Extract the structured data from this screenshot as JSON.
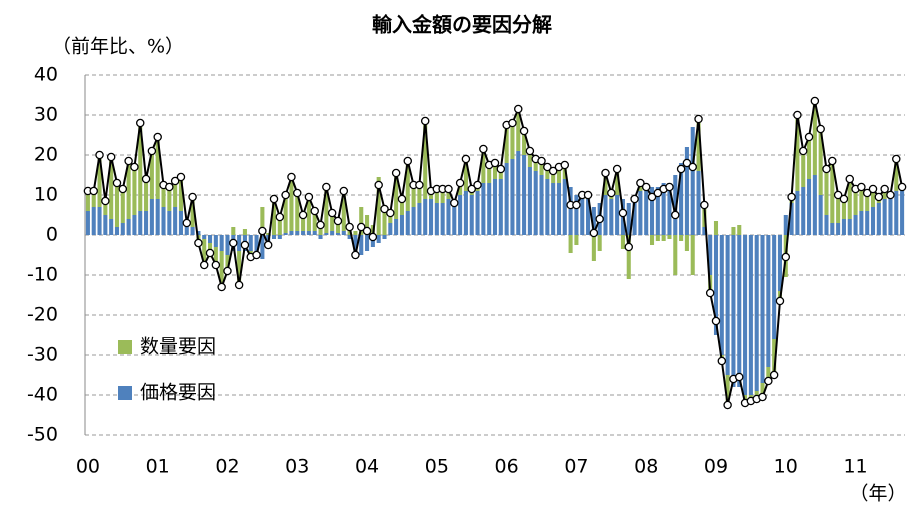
{
  "chart_data": {
    "type": "stacked-bar-line",
    "title": "輸入金額の要因分解",
    "y_label": "（前年比、%）",
    "x_label": "（年）",
    "categories": [
      "00",
      null,
      null,
      null,
      null,
      null,
      null,
      null,
      null,
      null,
      null,
      null,
      "01",
      null,
      null,
      null,
      null,
      null,
      null,
      null,
      null,
      null,
      null,
      null,
      "02",
      null,
      null,
      null,
      null,
      null,
      null,
      null,
      null,
      null,
      null,
      null,
      "03",
      null,
      null,
      null,
      null,
      null,
      null,
      null,
      null,
      null,
      null,
      null,
      "04",
      null,
      null,
      null,
      null,
      null,
      null,
      null,
      null,
      null,
      null,
      null,
      "05",
      null,
      null,
      null,
      null,
      null,
      null,
      null,
      null,
      null,
      null,
      null,
      "06",
      null,
      null,
      null,
      null,
      null,
      null,
      null,
      null,
      null,
      null,
      null,
      "07",
      null,
      null,
      null,
      null,
      null,
      null,
      null,
      null,
      null,
      null,
      null,
      "08",
      null,
      null,
      null,
      null,
      null,
      null,
      null,
      null,
      null,
      null,
      null,
      "09",
      null,
      null,
      null,
      null,
      null,
      null,
      null,
      null,
      null,
      null,
      null,
      "10",
      null,
      null,
      null,
      null,
      null,
      null,
      null,
      null,
      null,
      null,
      null,
      "11",
      null,
      null,
      null,
      null,
      null,
      null,
      null,
      null
    ],
    "series": [
      {
        "name": "数量要因",
        "color": "#9bbb59",
        "values": [
          5,
          4,
          13,
          3.5,
          15.5,
          11,
          8.5,
          14.5,
          12,
          22,
          8,
          12,
          15.5,
          5.5,
          6,
          6.5,
          8.5,
          0,
          7.5,
          -3,
          -6.5,
          -2.5,
          -4.5,
          -9,
          -4,
          2,
          -8.5,
          1.5,
          -1.5,
          0,
          7,
          0.5,
          10,
          5.5,
          9.5,
          13.5,
          9.5,
          4,
          8.5,
          5,
          3.5,
          11.5,
          4.5,
          3,
          10,
          3,
          1,
          7,
          5,
          2.5,
          14.5,
          7.5,
          2.5,
          11.5,
          4,
          12.5,
          5.5,
          4.5,
          19.5,
          2,
          3.5,
          3.5,
          2.5,
          0,
          3,
          8,
          1.5,
          1.5,
          8.5,
          4.5,
          4,
          2.5,
          9.5,
          9,
          10.5,
          6,
          4,
          3,
          3.5,
          3,
          3,
          4,
          3.5,
          -4.5,
          -2.5,
          1,
          1,
          -6.5,
          -4,
          5.5,
          1.5,
          6.5,
          -3.5,
          -11,
          0,
          2,
          1,
          -2.5,
          -1.5,
          -1.5,
          -1,
          -10,
          -1.5,
          -4,
          -10,
          13,
          5.5,
          -4.5,
          3.5,
          -1.5,
          -7.5,
          2,
          2.5,
          -2,
          -1.5,
          -2,
          -3.5,
          -3.5,
          -9,
          -2.5,
          -10.5,
          1.5,
          19,
          9,
          10.5,
          18.5,
          16.5,
          11.5,
          15.5,
          7,
          5,
          10,
          6.5,
          6,
          4.5,
          4.5,
          1.5,
          2.5,
          0,
          8,
          1
        ]
      },
      {
        "name": "価格要因",
        "color": "#4f81bd",
        "values": [
          6,
          7,
          7,
          5,
          4,
          2,
          3,
          4,
          5,
          6,
          6,
          9,
          9,
          7,
          6,
          7,
          6,
          3,
          2,
          1,
          -1,
          -2,
          -3,
          -4,
          -5,
          -4,
          -4,
          -4,
          -4,
          -5,
          -6,
          -3,
          -1,
          -1,
          0.5,
          1,
          1,
          1,
          1,
          1,
          -1,
          0.5,
          1,
          0.5,
          1,
          -1,
          -6,
          -5,
          -4,
          -3,
          -2,
          -1,
          3,
          4,
          5,
          6,
          7,
          8,
          9,
          9,
          8,
          8,
          9,
          8,
          10,
          11,
          10,
          11,
          13,
          13,
          14,
          14,
          18,
          19,
          21,
          20,
          17,
          16,
          15,
          14,
          13,
          13,
          14,
          12,
          10,
          9,
          9,
          7,
          8,
          10,
          9,
          10,
          9,
          8,
          9,
          11,
          11,
          12,
          12,
          13,
          13,
          15,
          18,
          22,
          27,
          16,
          2,
          -10,
          -25,
          -30,
          -35,
          -38,
          -38,
          -40,
          -40,
          -39,
          -37,
          -33,
          -26,
          -14,
          5,
          8,
          11,
          12,
          14,
          15,
          10,
          5,
          3,
          3,
          4,
          4,
          5,
          6,
          6,
          7,
          8,
          9,
          10,
          11,
          11
        ]
      }
    ],
    "line": {
      "color": "#000000",
      "marker_fill": "#ffffff",
      "values": [
        11,
        11,
        20,
        8.5,
        19.5,
        13,
        11.5,
        18.5,
        17,
        28,
        14,
        21,
        24.5,
        12.5,
        12,
        13.5,
        14.5,
        3,
        9.5,
        -2,
        -7.5,
        -4.5,
        -7.5,
        -13,
        -9,
        -2,
        -12.5,
        -2.5,
        -5.5,
        -5,
        1,
        -2.5,
        9,
        4.5,
        10,
        14.5,
        10.5,
        5,
        9.5,
        6,
        2.5,
        12,
        5.5,
        3.5,
        11,
        2,
        -5,
        2,
        1,
        -0.5,
        12.5,
        6.5,
        5.5,
        15.5,
        9,
        18.5,
        12.5,
        12.5,
        28.5,
        11,
        11.5,
        11.5,
        11.5,
        8,
        13,
        19,
        11.5,
        12.5,
        21.5,
        17.5,
        18,
        16.5,
        27.5,
        28,
        31.5,
        26,
        21,
        19,
        18.5,
        17,
        16,
        17,
        17.5,
        7.5,
        7.5,
        10,
        10,
        0.5,
        4,
        15.5,
        10.5,
        16.5,
        5.5,
        -3,
        9,
        13,
        12,
        9.5,
        10.5,
        11.5,
        12,
        5,
        16.5,
        18,
        17,
        29,
        7.5,
        -14.5,
        -21.5,
        -31.5,
        -42.5,
        -36,
        -35.5,
        -42,
        -41.5,
        -41,
        -40.5,
        -36.5,
        -35,
        -16.5,
        -5.5,
        9.5,
        30,
        21,
        24.5,
        33.5,
        26.5,
        16.5,
        18.5,
        10,
        9,
        14,
        11.5,
        12,
        10.5,
        11.5,
        9.5,
        11.5,
        10,
        19,
        12
      ]
    },
    "ylim": [
      -50,
      40
    ],
    "yticks": [
      -50,
      -40,
      -30,
      -20,
      -10,
      0,
      10,
      20,
      30,
      40
    ],
    "grid": true,
    "negative_tick_color": "#ff0000",
    "legend": "lower-left"
  }
}
